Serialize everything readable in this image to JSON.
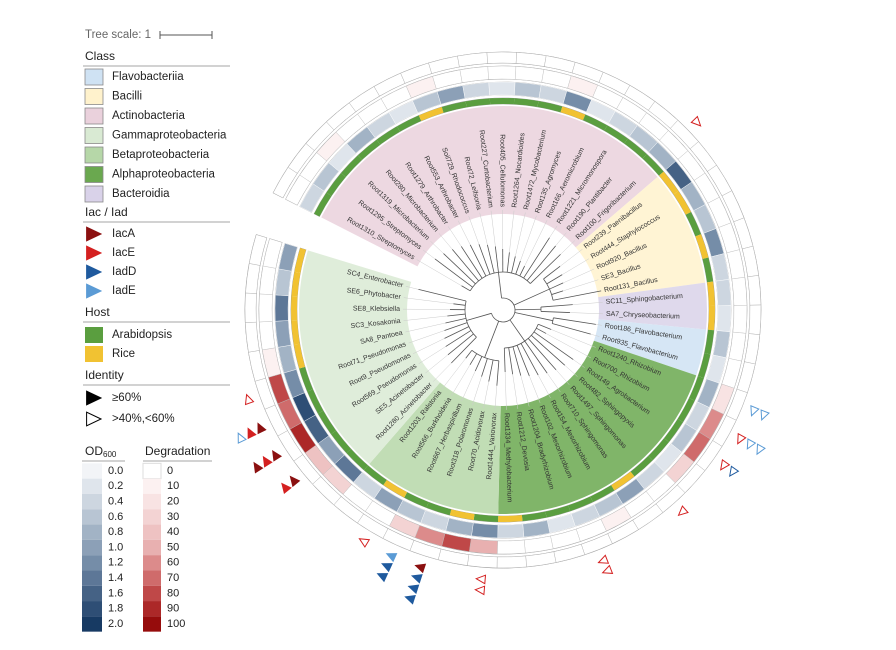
{
  "tree_scale": "Tree scale: 1",
  "legend": {
    "class": {
      "title": "Class",
      "items": [
        {
          "label": "Flavobacteriia",
          "color": "#cfe2f3"
        },
        {
          "label": "Bacilli",
          "color": "#fff2cc"
        },
        {
          "label": "Actinobacteria",
          "color": "#ead1dc"
        },
        {
          "label": "Gammaproteobacteria",
          "color": "#d9ead3"
        },
        {
          "label": "Betaproteobacteria",
          "color": "#b6d7a8"
        },
        {
          "label": "Alphaproteobacteria",
          "color": "#6aa84f"
        },
        {
          "label": "Bacteroidia",
          "color": "#d9d2e9"
        }
      ]
    },
    "genes": {
      "title": "Iac / Iad",
      "items": [
        {
          "label": "IacA",
          "color": "#8b1010"
        },
        {
          "label": "IacE",
          "color": "#d42020"
        },
        {
          "label": "IadD",
          "color": "#1f5a9e"
        },
        {
          "label": "IadE",
          "color": "#5b9bd5"
        }
      ]
    },
    "host": {
      "title": "Host",
      "items": [
        {
          "label": "Arabidopsis",
          "color": "#5a9e3f"
        },
        {
          "label": "Rice",
          "color": "#f1c232"
        }
      ]
    },
    "identity": {
      "title": "Identity",
      "items": [
        {
          "label": "≥60%",
          "filled": true
        },
        {
          "label": ">40%,<60%",
          "filled": false
        }
      ]
    },
    "od": {
      "title": "OD",
      "title_sub": "600",
      "ticks": [
        {
          "value": 0,
          "label": "0.0"
        },
        0.2,
        0.4,
        0.6,
        0.8,
        {
          "value": 1,
          "label": "1.0"
        },
        1.2,
        1.4,
        1.6,
        1.8,
        {
          "value": 2,
          "label": "2.0"
        }
      ],
      "colors": [
        "#f2f4f7",
        "#dfe5ec",
        "#cdd6e0",
        "#b8c5d3",
        "#a2b3c5",
        "#8ca0b7",
        "#758da8",
        "#5d7797",
        "#456285",
        "#2e4e75",
        "#173a63"
      ]
    },
    "degradation": {
      "title": "Degradation",
      "ticks": [
        0,
        10,
        20,
        30,
        40,
        50,
        60,
        70,
        80,
        90,
        100
      ],
      "colors": [
        "#ffffff",
        "#fcf1f1",
        "#f8e3e3",
        "#f3d3d3",
        "#eec2c2",
        "#e8b0b0",
        "#dc8b8b",
        "#cf6b6b",
        "#bf4848",
        "#ac2828",
        "#960c0c"
      ]
    }
  },
  "tree": {
    "classes": [
      {
        "class": 2,
        "leaves": [
          "Root1310_Streptomyces",
          "Root1295_Streptomyces",
          "Root1319_Microbacterium",
          "Root280_Microbacterium",
          "Root1279_Arthrobacter",
          "Root553_Arthrobacter",
          "Soil729_Rhodococcus",
          "Root72_Leifsonia",
          "Root227_Curtobacterium",
          "Root405_Cellulomonas",
          "Root1264_Nocardioides",
          "Root1472_Mycobacterium",
          "Root135_Agromyces",
          "Root166_Aeromicrobium",
          "Root1221_Micromonospora",
          "Root190_Plantibacter",
          "Root100_Frigoribacterium"
        ],
        "host": [
          0,
          0,
          0,
          0,
          0,
          0,
          1,
          0,
          0,
          0,
          0,
          0,
          1,
          0,
          0,
          0,
          0
        ],
        "od": [
          0.4,
          0.6,
          0.2,
          0.8,
          0.4,
          0.2,
          0.6,
          1.0,
          0.4,
          0.2,
          0.6,
          0.4,
          1.2,
          0.2,
          0.4,
          0.6,
          0.8
        ],
        "degradation": [
          0,
          0,
          10,
          0,
          0,
          0,
          10,
          0,
          0,
          0,
          0,
          0,
          10,
          0,
          0,
          0,
          0
        ],
        "iac": [
          [],
          [],
          [],
          [],
          [],
          [],
          [],
          [],
          [],
          [],
          [],
          [],
          [],
          [],
          [],
          [],
          [
            [
              1,
              1
            ]
          ]
        ]
      },
      {
        "class": 1,
        "leaves": [
          "Root239_Paenibacillus",
          "Root444_Staphylococcus",
          "Root920_Bacillus",
          "SE3_Bacillus",
          "Root131_Bacillus"
        ],
        "host": [
          1,
          1,
          0,
          1,
          0
        ],
        "od": [
          1.6,
          0.8,
          0.6,
          1.2,
          0.4
        ],
        "degradation": [
          0,
          0,
          0,
          0,
          0
        ],
        "iac": [
          [],
          [],
          [],
          [],
          []
        ]
      },
      {
        "class": 6,
        "leaves": [
          "SC11_Sphingobacterium",
          "SA7_Chryseobacterium"
        ],
        "host": [
          1,
          1
        ],
        "od": [
          0.4,
          0.2
        ],
        "degradation": [
          0,
          0
        ],
        "iac": [
          [],
          []
        ]
      },
      {
        "class": 0,
        "leaves": [
          "Root186_Flavobacterium",
          "Root935_Flavobacterium"
        ],
        "host": [
          0,
          0
        ],
        "od": [
          0.6,
          0.2
        ],
        "degradation": [
          0,
          0
        ],
        "iac": [
          [],
          []
        ]
      },
      {
        "class": 5,
        "leaves": [
          "Root1240_Rhizobium",
          "Root700_Rhizobium",
          "Root149_Agrobacterium",
          "Root482_Sphingopyxis",
          "Root1497_Sphingomonas",
          "Root710_Sphingomonas",
          "Root154_Mesorhizobium",
          "Root102_Mesorhizobium",
          "Root1204_Bradyrhizobium",
          "Root1212_Devosia",
          "Root1334_Methylobacterium"
        ],
        "host": [
          0,
          0,
          0,
          0,
          0,
          1,
          0,
          0,
          0,
          0,
          1
        ],
        "od": [
          0.8,
          0.4,
          0.6,
          0.2,
          0.4,
          1.0,
          0.6,
          0.4,
          0.2,
          0.8,
          0.4
        ],
        "degradation": [
          20,
          60,
          70,
          30,
          0,
          0,
          10,
          0,
          0,
          0,
          0
        ],
        "iac": [
          [
            [
              3,
              1
            ],
            [
              3,
              1
            ]
          ],
          [
            [
              1,
              1
            ],
            [
              3,
              1
            ],
            [
              3,
              1
            ]
          ],
          [
            [
              1,
              1
            ],
            [
              2,
              1
            ]
          ],
          [],
          [
            [
              1,
              1
            ]
          ],
          [],
          [],
          [
            [
              1,
              1
            ],
            [
              1,
              1
            ]
          ],
          [],
          [],
          []
        ]
      },
      {
        "class": 4,
        "leaves": [
          "Root1444_Variovorax",
          "Root70_Acidovorax",
          "Root318_Polaromonas",
          "Root667_Herbaspirillum",
          "Root566_Burkholderia",
          "Root1203_Ralstonia"
        ],
        "host": [
          0,
          1,
          0,
          0,
          1,
          0
        ],
        "od": [
          1.2,
          0.8,
          0.4,
          0.6,
          1.0,
          0.4
        ],
        "degradation": [
          50,
          80,
          60,
          30,
          0,
          0
        ],
        "iac": [
          [
            [
              1,
              1
            ],
            [
              1,
              1
            ]
          ],
          [],
          [
            [
              0,
              0
            ],
            [
              2,
              0
            ],
            [
              2,
              0
            ],
            [
              2,
              0
            ]
          ],
          [
            [
              3,
              0
            ],
            [
              2,
              0
            ],
            [
              2,
              0
            ]
          ],
          [
            [
              1,
              1
            ]
          ],
          []
        ]
      },
      {
        "class": 3,
        "leaves": [
          "Root1280_Acinetobacter",
          "SE5_Acinetobacter",
          "Root569_Pseudomonas",
          "Root9_Pseudomonas",
          "Root71_Pseudomonas",
          "SA8_Pantoea",
          "SC3_Kosakonia",
          "SE8_Klebsiella",
          "SE6_Phytobacter",
          "SC4_Enterobacter"
        ],
        "host": [
          0,
          0,
          0,
          0,
          0,
          1,
          1,
          1,
          1,
          1
        ],
        "od": [
          1.4,
          1.0,
          1.6,
          1.8,
          1.2,
          0.8,
          1.0,
          1.4,
          0.6,
          1.0
        ],
        "degradation": [
          30,
          40,
          90,
          70,
          80,
          10,
          0,
          0,
          0,
          0
        ],
        "iac": [
          [],
          [
            [
              0,
              0
            ],
            [
              1,
              0
            ]
          ],
          [
            [
              0,
              0
            ],
            [
              1,
              0
            ],
            [
              0,
              0
            ]
          ],
          [
            [
              0,
              0
            ],
            [
              1,
              0
            ],
            [
              3,
              1
            ]
          ],
          [
            [
              1,
              1
            ]
          ],
          [],
          [],
          [],
          [],
          []
        ]
      }
    ]
  }
}
